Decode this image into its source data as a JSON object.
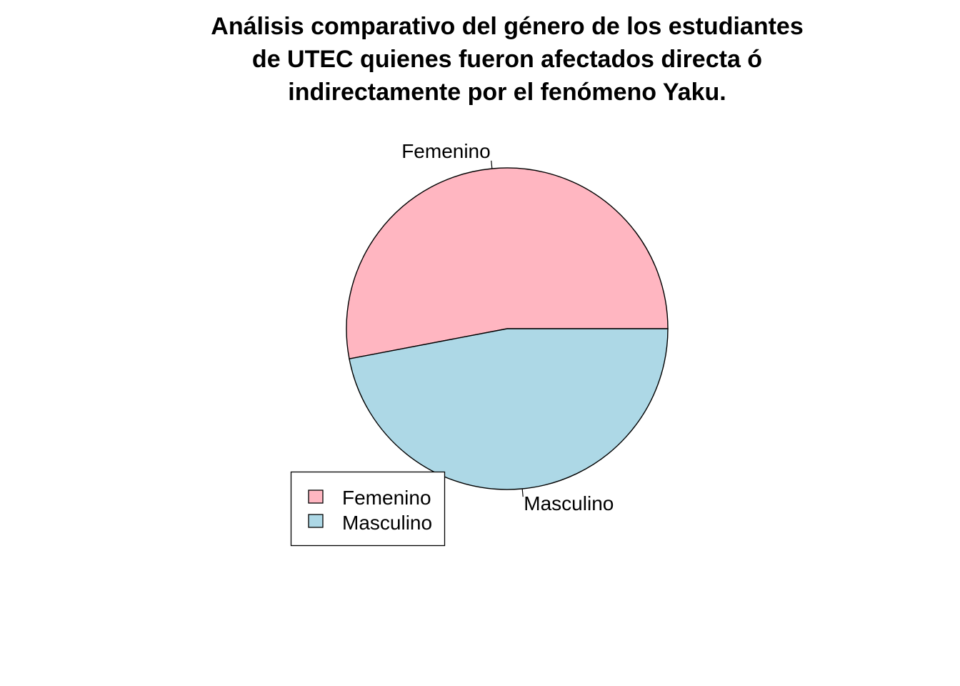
{
  "chart_data": {
    "type": "pie",
    "title_lines": [
      "Análisis comparativo del género de los estudiantes",
      "de UTEC quienes fueron afectados directa ó",
      "indirectamente por el fenómeno Yaku."
    ],
    "slices": [
      {
        "label": "Femenino",
        "value": 53,
        "color": "#FFB6C1"
      },
      {
        "label": "Masculino",
        "value": 47,
        "color": "#ADD8E6"
      }
    ],
    "start_angle_deg": 0,
    "direction": "counterclockwise",
    "legend": {
      "placement": "bottom-left",
      "entries": [
        "Femenino",
        "Masculino"
      ]
    }
  }
}
